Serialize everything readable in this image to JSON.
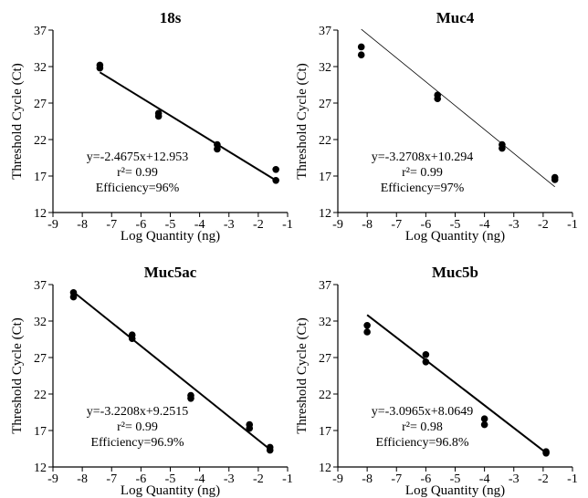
{
  "chart_data": [
    {
      "type": "scatter",
      "title": "18s",
      "xlabel": "Log Quantity (ng)",
      "ylabel": "Threshold Cycle (Ct)",
      "xlim": [
        -9,
        -1
      ],
      "ylim": [
        12,
        37
      ],
      "xticks": [
        -9,
        -8,
        -7,
        -6,
        -5,
        -4,
        -3,
        -2,
        -1
      ],
      "yticks": [
        12,
        17,
        22,
        27,
        32,
        37
      ],
      "points": [
        [
          -7.4,
          32.2
        ],
        [
          -7.4,
          31.8
        ],
        [
          -5.4,
          25.6
        ],
        [
          -5.4,
          25.2
        ],
        [
          -3.4,
          21.3
        ],
        [
          -3.4,
          20.7
        ],
        [
          -1.4,
          17.9
        ],
        [
          -1.4,
          16.4
        ]
      ],
      "fit": {
        "slope": -2.4675,
        "intercept": 12.953,
        "x_range": [
          -7.4,
          -1.4
        ]
      },
      "annotations": [
        "y=-2.4675x+12.953",
        "r²= 0.99",
        "Efficiency=96%"
      ]
    },
    {
      "type": "scatter",
      "title": "Muc4",
      "xlabel": "Log Quantity (ng)",
      "ylabel": "Threshold Cycle (Ct)",
      "xlim": [
        -9,
        -1
      ],
      "ylim": [
        12,
        37
      ],
      "xticks": [
        -9,
        -8,
        -7,
        -6,
        -5,
        -4,
        -3,
        -2,
        -1
      ],
      "yticks": [
        12,
        17,
        22,
        27,
        32,
        37
      ],
      "points": [
        [
          -8.2,
          34.7
        ],
        [
          -8.2,
          33.6
        ],
        [
          -5.6,
          28.1
        ],
        [
          -5.6,
          27.6
        ],
        [
          -3.4,
          21.3
        ],
        [
          -3.4,
          20.8
        ],
        [
          -1.6,
          16.8
        ],
        [
          -1.6,
          16.5
        ]
      ],
      "fit": {
        "slope": -3.2708,
        "intercept": 10.294,
        "x_range": [
          -8.2,
          -1.6
        ]
      },
      "annotations": [
        "y=-3.2708x+10.294",
        "r²= 0.99",
        "Efficiency=97%"
      ]
    },
    {
      "type": "scatter",
      "title": "Muc5ac",
      "xlabel": "Log Quantity (ng)",
      "ylabel": "Threshold Cycle (Ct)",
      "xlim": [
        -9,
        -1
      ],
      "ylim": [
        12,
        37
      ],
      "xticks": [
        -9,
        -8,
        -7,
        -6,
        -5,
        -4,
        -3,
        -2,
        -1
      ],
      "yticks": [
        12,
        17,
        22,
        27,
        32,
        37
      ],
      "points": [
        [
          -8.3,
          35.9
        ],
        [
          -8.3,
          35.3
        ],
        [
          -6.3,
          30.1
        ],
        [
          -6.3,
          29.6
        ],
        [
          -4.3,
          21.8
        ],
        [
          -4.3,
          21.4
        ],
        [
          -2.3,
          17.8
        ],
        [
          -2.3,
          17.3
        ],
        [
          -1.6,
          14.7
        ],
        [
          -1.6,
          14.3
        ]
      ],
      "fit": {
        "slope": -3.2208,
        "intercept": 9.2515,
        "x_range": [
          -8.3,
          -1.6
        ]
      },
      "annotations": [
        "y=-3.2208x+9.2515",
        "r²= 0.99",
        "Efficiency=96.9%"
      ]
    },
    {
      "type": "scatter",
      "title": "Muc5b",
      "xlabel": "Log Quantity (ng)",
      "ylabel": "Threshold Cycle (Ct)",
      "xlim": [
        -9,
        -1
      ],
      "ylim": [
        12,
        37
      ],
      "xticks": [
        -9,
        -8,
        -7,
        -6,
        -5,
        -4,
        -3,
        -2,
        -1
      ],
      "yticks": [
        12,
        17,
        22,
        27,
        32,
        37
      ],
      "points": [
        [
          -8.0,
          31.4
        ],
        [
          -8.0,
          30.5
        ],
        [
          -6.0,
          27.4
        ],
        [
          -6.0,
          26.4
        ],
        [
          -4.0,
          18.6
        ],
        [
          -4.0,
          17.8
        ],
        [
          -1.9,
          14.1
        ],
        [
          -1.9,
          13.9
        ]
      ],
      "fit": {
        "slope": -3.0965,
        "intercept": 8.0649,
        "x_range": [
          -8.0,
          -1.9
        ]
      },
      "annotations": [
        "y=-3.0965x+8.0649",
        "r²= 0.98",
        "Efficiency=96.8%"
      ]
    }
  ]
}
